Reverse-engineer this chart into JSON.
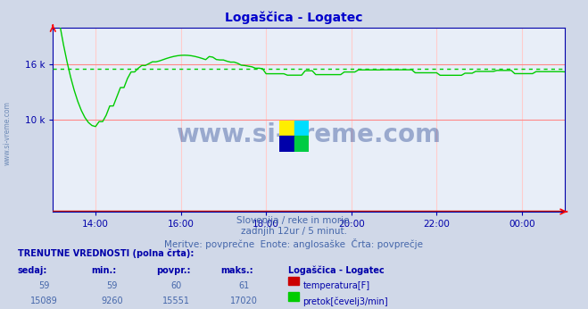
{
  "title": "Logaščica - Logatec",
  "title_color": "#0000cc",
  "bg_color": "#d0d8e8",
  "plot_bg_color": "#e8eef8",
  "grid_color_h": "#ff8888",
  "grid_color_v": "#ffcccc",
  "axis_color": "#0000aa",
  "x_labels": [
    "14:00",
    "16:00",
    "18:00",
    "20:00",
    "22:00",
    "00:00"
  ],
  "ylim_min": 0,
  "ylim_max": 20000,
  "avg_line_value": 15551,
  "avg_line_color": "#00cc00",
  "flow_line_color": "#00cc00",
  "temp_line_color": "#cc0000",
  "watermark_text": "www.si-vreme.com",
  "watermark_color": "#1a3a8a",
  "sub_text1": "Slovenija / reke in morje.",
  "sub_text2": "zadnjih 12ur / 5 minut.",
  "sub_text3": "Meritve: povprečne  Enote: anglosaške  Črta: povprečje",
  "sub_text_color": "#4466aa",
  "table_title": "TRENUTNE VREDNOSTI (polna črta):",
  "col_headers": [
    "sedaj:",
    "min.:",
    "povpr.:",
    "maks.:",
    "Logaščica - Logatec"
  ],
  "row1": [
    "59",
    "59",
    "60",
    "61",
    "temperatura[F]"
  ],
  "row2": [
    "15089",
    "9260",
    "15551",
    "17020",
    "pretok[čevelj3/min]"
  ],
  "row1_color": "#cc0000",
  "row2_color": "#00cc00",
  "ylabel_color": "#5577aa",
  "logo_yellow": "#ffee00",
  "logo_cyan": "#00ddff",
  "logo_blue": "#0000aa",
  "logo_green": "#00cc44"
}
